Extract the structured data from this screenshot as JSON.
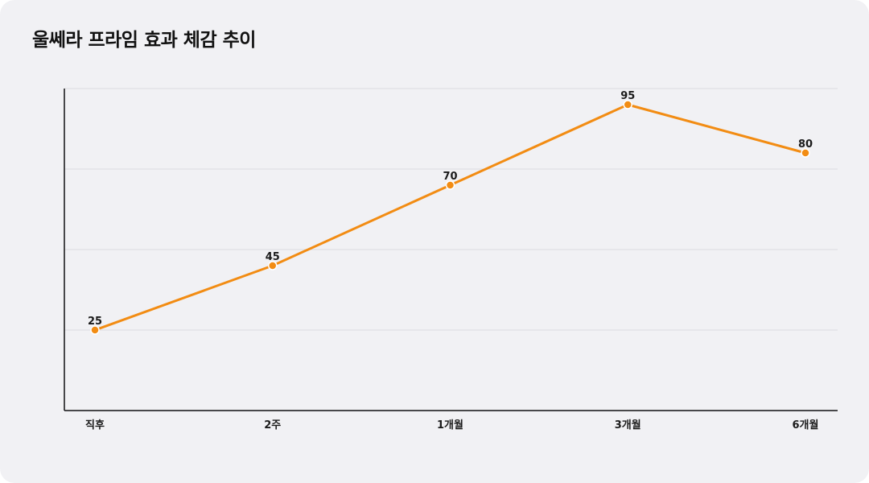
{
  "chart_data": {
    "type": "line",
    "title": "울쎄라 프라임 효과 체감 추이",
    "categories": [
      "직후",
      "2주",
      "1개월",
      "3개월",
      "6개월"
    ],
    "series": [
      {
        "values": [
          25,
          45,
          70,
          95,
          80
        ]
      }
    ],
    "ylim": [
      0,
      100
    ],
    "grid": true,
    "colors": {
      "line": "#f28c13",
      "point": "#f28c13",
      "grid": "#dcdce0",
      "axis": "#111111"
    }
  }
}
